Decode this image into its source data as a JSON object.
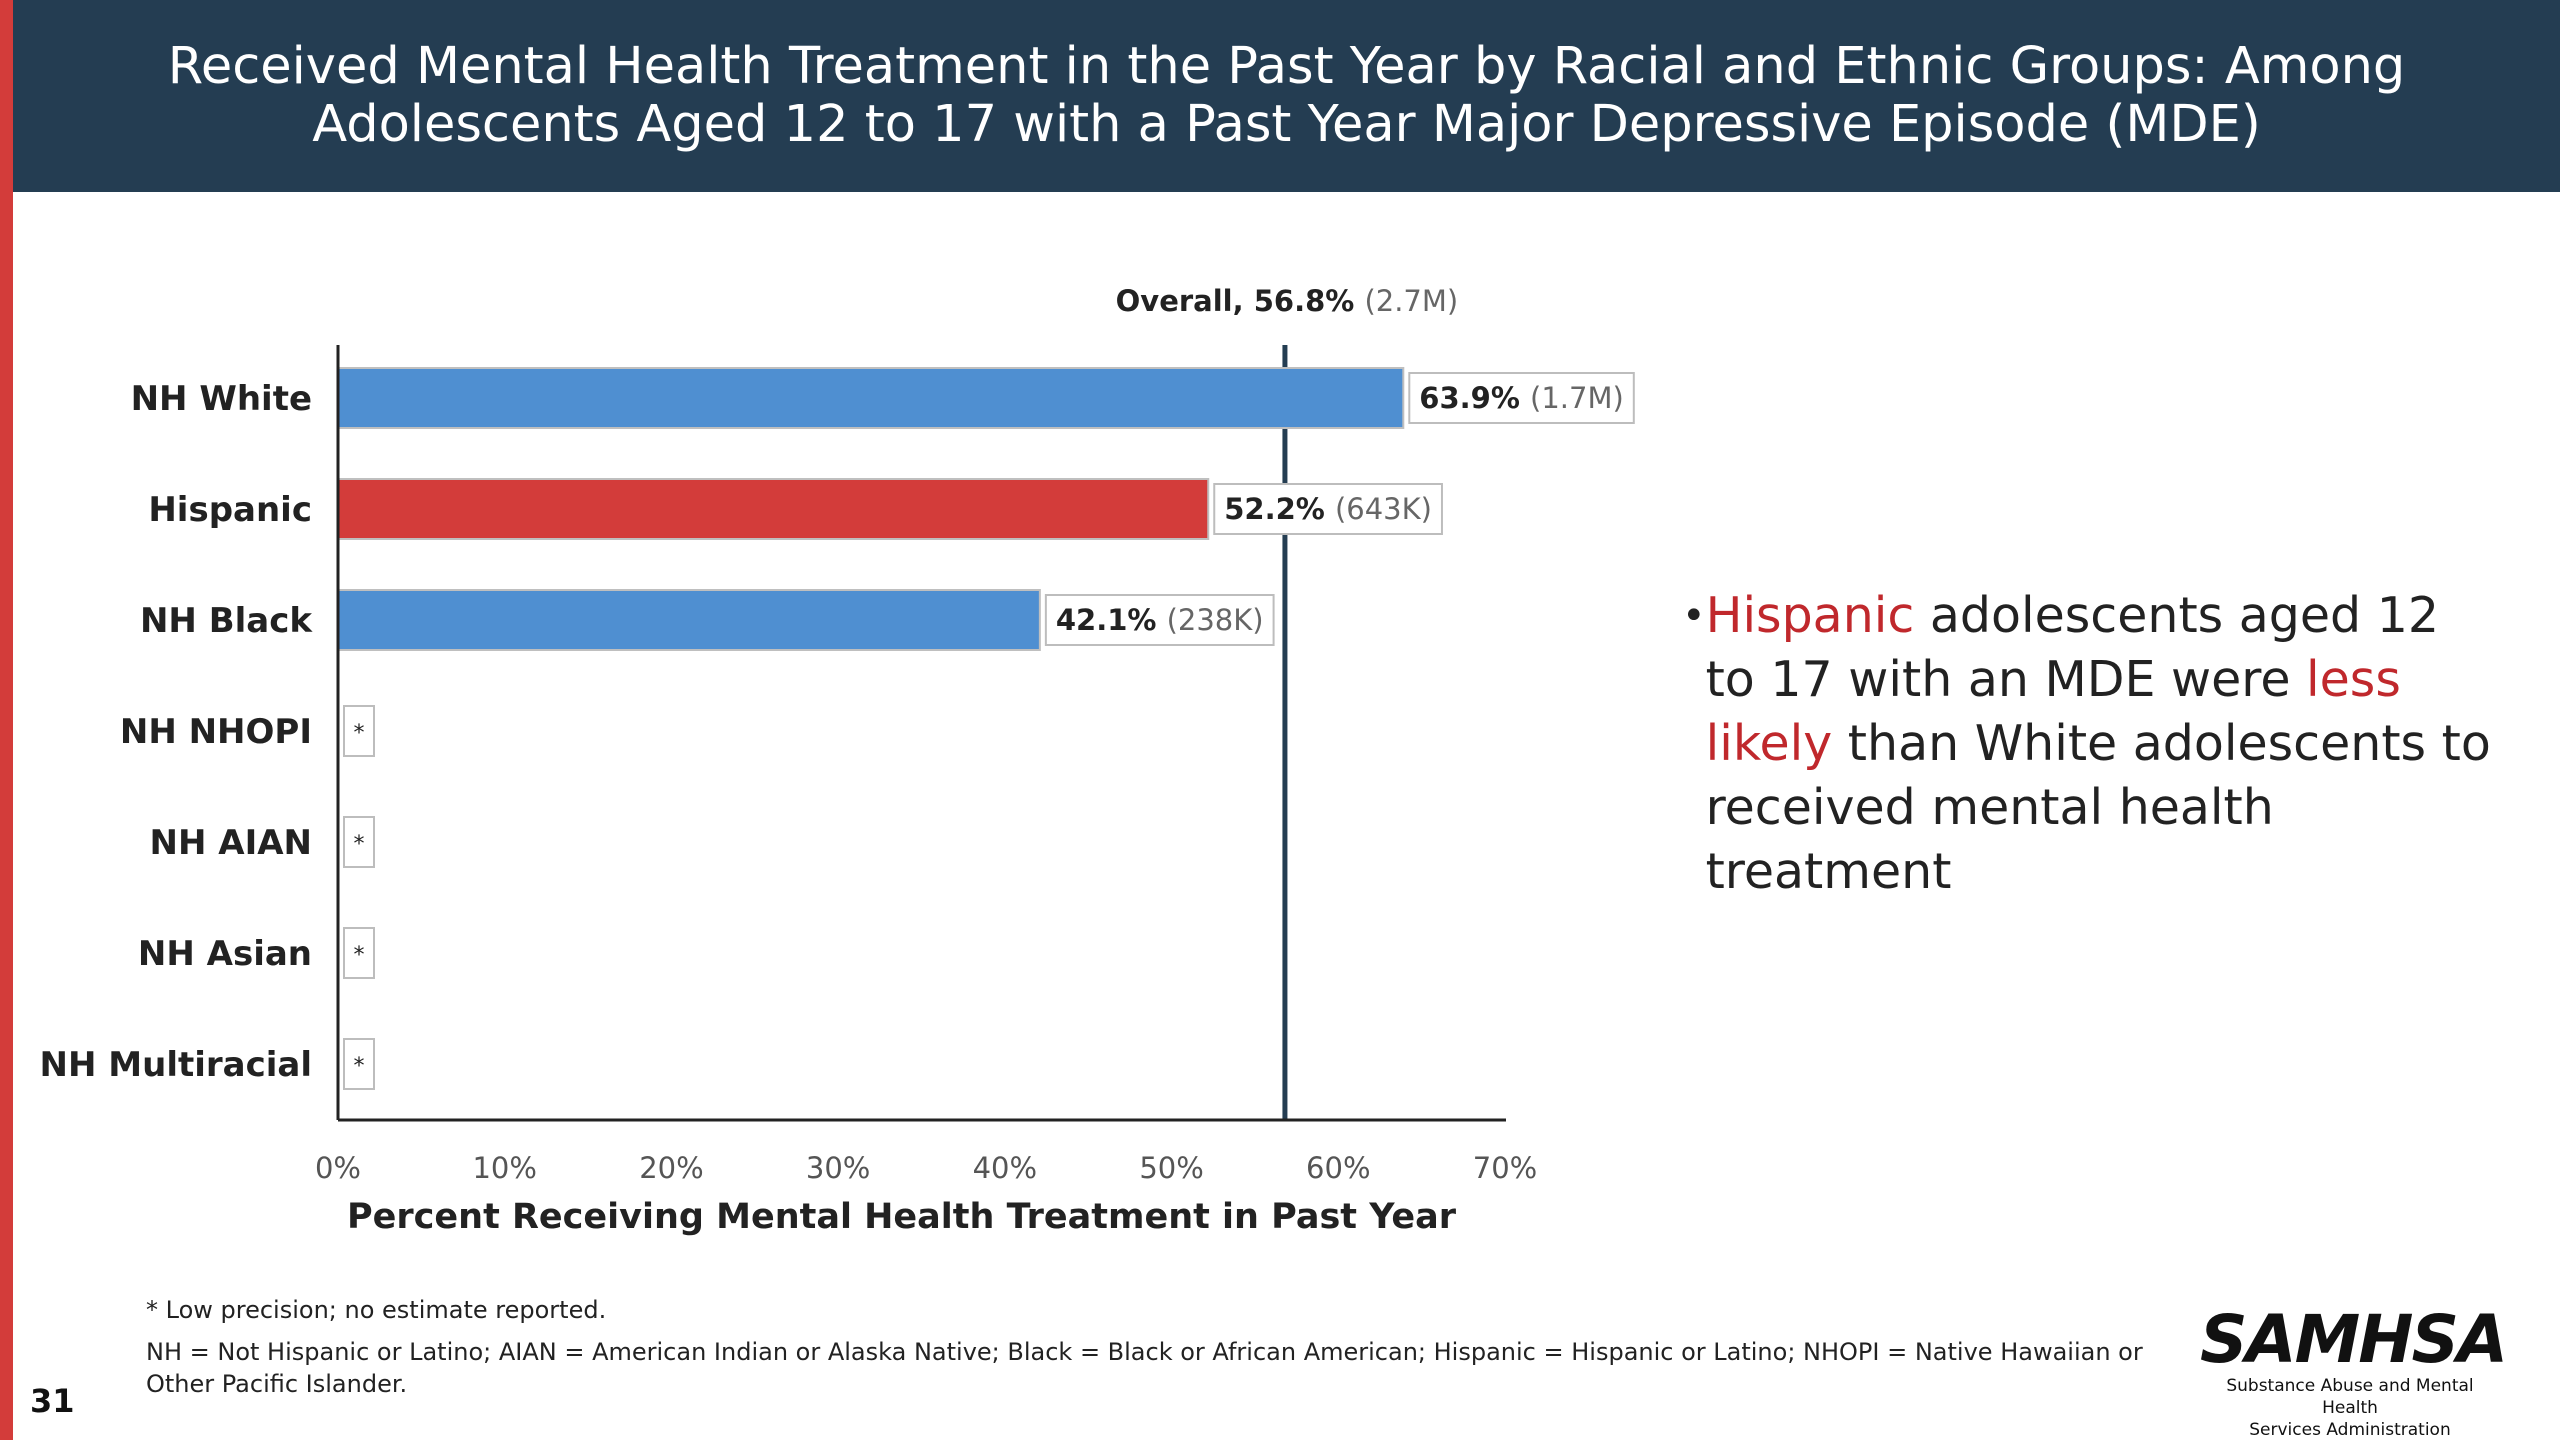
{
  "slide": {
    "title": "Received Mental Health Treatment in the Past Year by Racial and Ethnic Groups: Among\nAdolescents Aged 12 to 17 with a Past Year Major Depressive Episode (MDE)",
    "page_number": "31",
    "bullet": {
      "part1": "Hispanic",
      "part2": " adolescents aged 12 to 17 with an MDE were ",
      "part3": "less likely",
      "part4": " than White adolescents to received mental health treatment"
    },
    "footnote_1": "* Low precision; no estimate reported.",
    "footnote_2": "NH = Not Hispanic or Latino; AIAN = American Indian or Alaska Native; Black = Black or African American; Hispanic = Hispanic or Latino; NHOPI = Native Hawaiian or Other Pacific Islander.",
    "logo": {
      "word": "SAMHSA",
      "sub": "Substance Abuse and Mental Health\nServices Administration"
    }
  },
  "colors": {
    "header_bg": "#243d52",
    "bar_blue": "#4f8fd1",
    "bar_red": "#d33c3a",
    "highlight_red": "#c0282c",
    "stripe": "#d33c3a"
  },
  "chart_data": {
    "type": "bar",
    "orientation": "horizontal",
    "categories": [
      "NH White",
      "Hispanic",
      "NH Black",
      "NH NHOPI",
      "NH AIAN",
      "NH Asian",
      "NH Multiracial"
    ],
    "values": [
      63.9,
      52.2,
      42.1,
      null,
      null,
      null,
      null
    ],
    "value_labels": [
      "63.9%",
      "52.2%",
      "42.1%",
      "*",
      "*",
      "*",
      "*"
    ],
    "count_labels": [
      "(1.7M)",
      "(643K)",
      "(238K)",
      "",
      "",
      "",
      ""
    ],
    "highlight": [
      false,
      true,
      false,
      false,
      false,
      false,
      false
    ],
    "xlim": [
      0,
      70
    ],
    "xticks": [
      "0%",
      "10%",
      "20%",
      "30%",
      "40%",
      "50%",
      "60%",
      "70%"
    ],
    "xlabel": "Percent Receiving Mental Health Treatment in Past Year",
    "reference_line": {
      "value": 56.8,
      "label": "Overall, 56.8%",
      "count": "(2.7M)"
    },
    "grid": false
  }
}
